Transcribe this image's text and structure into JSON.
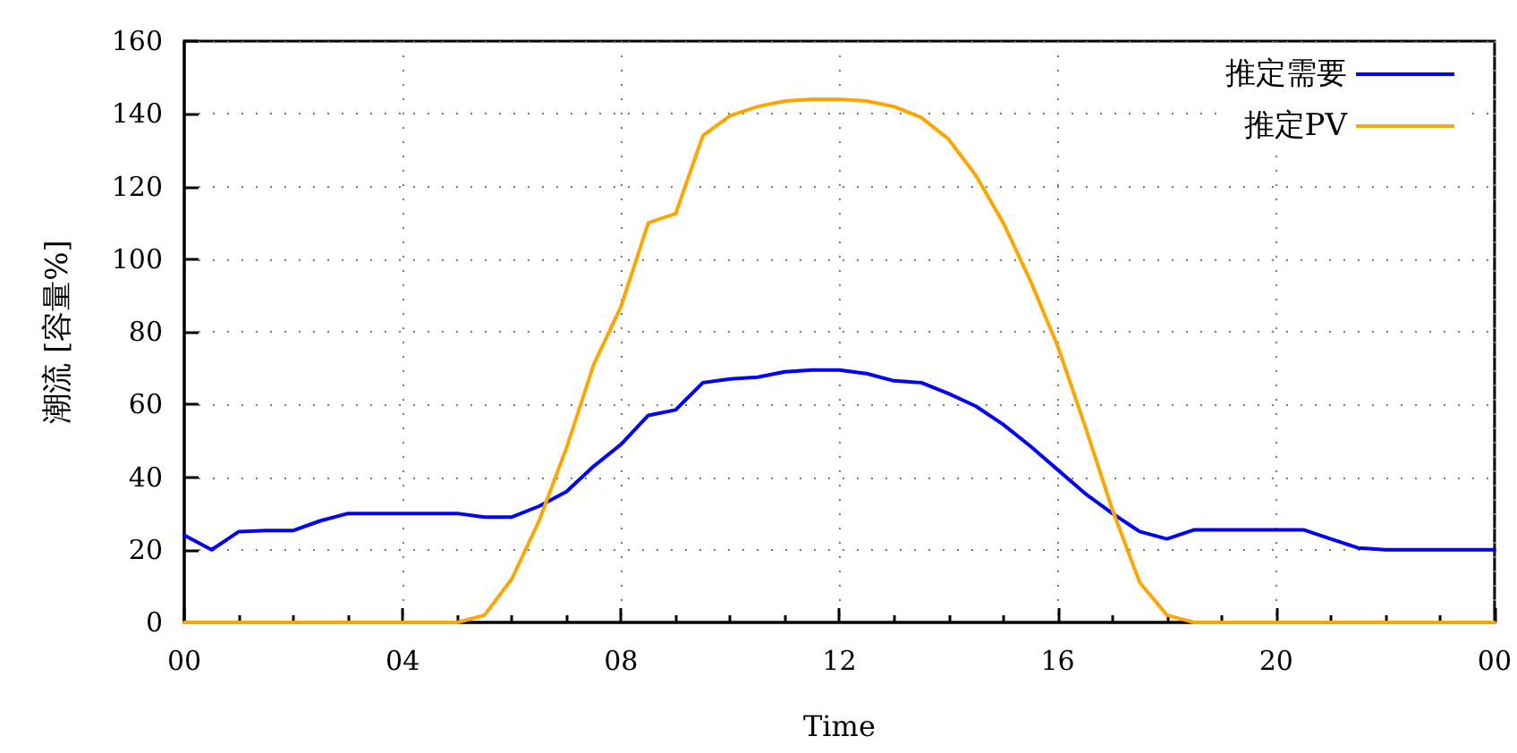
{
  "chart_data": {
    "type": "line",
    "xlabel": "Time",
    "ylabel": "潮流 [容量%]",
    "x": [
      0,
      0.5,
      1,
      1.5,
      2,
      2.5,
      3,
      3.5,
      4,
      4.5,
      5,
      5.5,
      6,
      6.5,
      7,
      7.5,
      8,
      8.5,
      9,
      9.5,
      10,
      10.5,
      11,
      11.5,
      12,
      12.5,
      13,
      13.5,
      14,
      14.5,
      15,
      15.5,
      16,
      16.5,
      17,
      17.5,
      18,
      18.5,
      19,
      19.5,
      20,
      20.5,
      21,
      21.5,
      22,
      22.5,
      23,
      23.5,
      24
    ],
    "series": [
      {
        "name": "推定需要",
        "color": "#0000ff",
        "values": [
          24,
          20,
          25,
          25.3,
          25.3,
          28,
          30,
          30,
          30,
          30,
          30,
          29,
          29,
          32,
          36,
          43,
          49,
          57,
          58.5,
          66,
          67,
          67.5,
          69,
          69.5,
          69.5,
          68.5,
          66.5,
          66,
          63,
          59.5,
          54.5,
          48.5,
          42,
          35.5,
          30,
          25,
          23,
          25.5,
          25.5,
          25.5,
          25.5,
          25.5,
          23,
          20.5,
          20,
          20,
          20,
          20,
          20
        ]
      },
      {
        "name": "推定PV",
        "color": "#ffa500",
        "values": [
          0,
          0,
          0,
          0,
          0,
          0,
          0,
          0,
          0,
          0,
          0,
          2,
          12,
          28,
          48,
          71,
          87,
          110,
          112.5,
          134,
          139.5,
          142,
          143.5,
          144,
          144,
          143.5,
          142,
          139,
          133,
          123,
          110,
          94,
          76,
          54,
          31,
          11,
          2,
          0,
          0,
          0,
          0,
          0,
          0,
          0,
          0,
          0,
          0,
          0,
          0
        ]
      }
    ],
    "xlim": [
      0,
      24
    ],
    "xticks": [
      {
        "value": 0,
        "label": "00"
      },
      {
        "value": 1,
        "label": null
      },
      {
        "value": 2,
        "label": null
      },
      {
        "value": 3,
        "label": null
      },
      {
        "value": 4,
        "label": "04"
      },
      {
        "value": 5,
        "label": null
      },
      {
        "value": 6,
        "label": null
      },
      {
        "value": 7,
        "label": null
      },
      {
        "value": 8,
        "label": "08"
      },
      {
        "value": 9,
        "label": null
      },
      {
        "value": 10,
        "label": null
      },
      {
        "value": 11,
        "label": null
      },
      {
        "value": 12,
        "label": "12"
      },
      {
        "value": 13,
        "label": null
      },
      {
        "value": 14,
        "label": null
      },
      {
        "value": 15,
        "label": null
      },
      {
        "value": 16,
        "label": "16"
      },
      {
        "value": 17,
        "label": null
      },
      {
        "value": 18,
        "label": null
      },
      {
        "value": 19,
        "label": null
      },
      {
        "value": 20,
        "label": "20"
      },
      {
        "value": 21,
        "label": null
      },
      {
        "value": 22,
        "label": null
      },
      {
        "value": 23,
        "label": null
      },
      {
        "value": 24,
        "label": "00"
      }
    ],
    "ylim": [
      0,
      160
    ],
    "yticks": [
      0,
      20,
      40,
      60,
      80,
      100,
      120,
      140,
      160
    ],
    "grid": true,
    "legend": "top right",
    "marker": "none",
    "line_style": "solid"
  }
}
